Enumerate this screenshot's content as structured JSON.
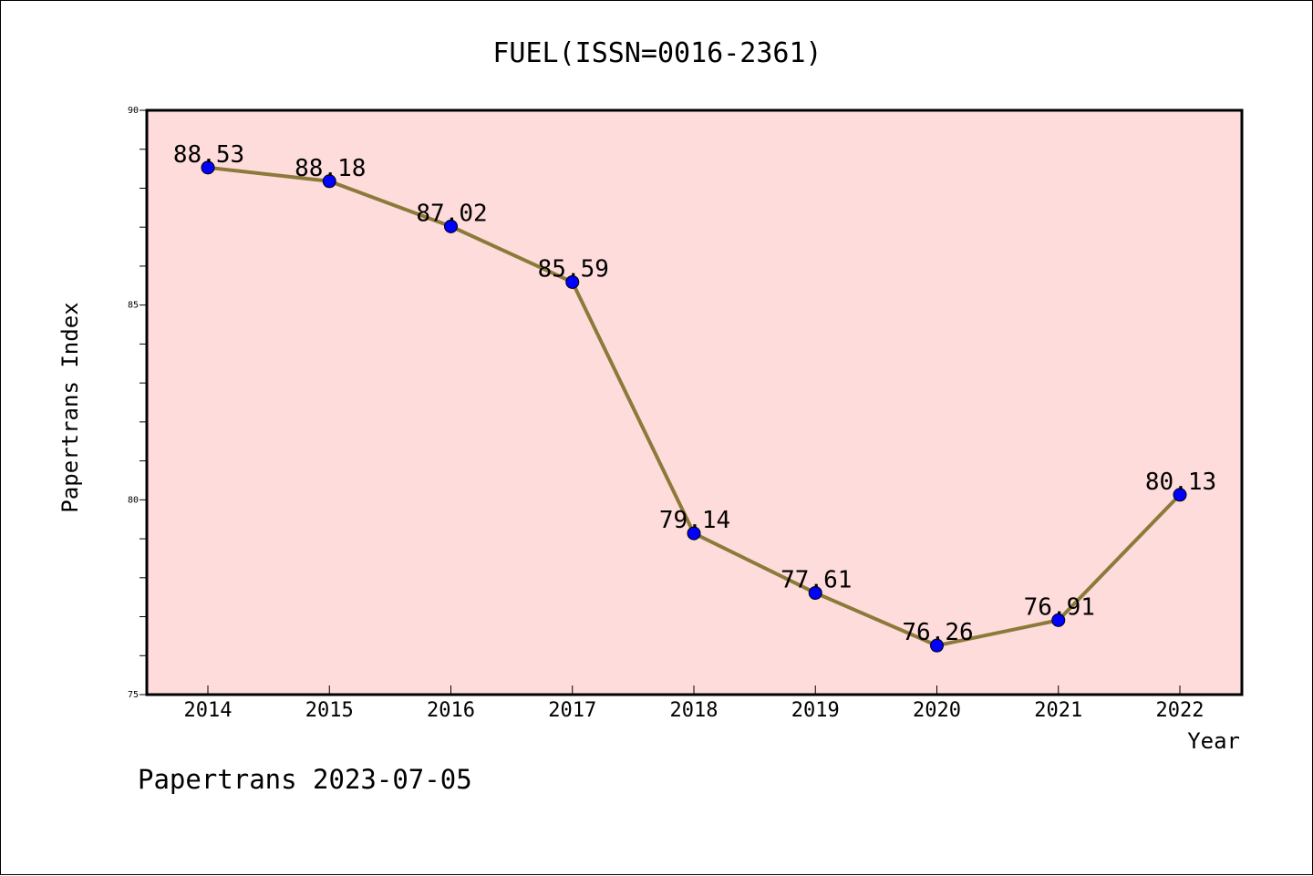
{
  "chart_data": {
    "type": "line",
    "title": "FUEL(ISSN=0016-2361)",
    "xlabel": "Year",
    "ylabel": "Papertrans Index",
    "categories": [
      "2014",
      "2015",
      "2016",
      "2017",
      "2018",
      "2019",
      "2020",
      "2021",
      "2022"
    ],
    "series": [
      {
        "values": [
          88.53,
          88.18,
          87.02,
          85.59,
          79.14,
          77.61,
          76.26,
          76.91,
          80.13
        ],
        "value_labels": [
          "88.53",
          "88.18",
          "87.02",
          "85.59",
          "79.14",
          "77.61",
          "76.26",
          "76.91",
          "80.13"
        ],
        "line_color": "#8b7a3a",
        "marker_color": "#0000ff"
      }
    ],
    "ylim": [
      75,
      90
    ],
    "y_ticks": [
      75,
      80,
      85,
      90
    ],
    "y_tick_labels": [
      "75",
      "80",
      "85",
      "90"
    ],
    "y_minor_step": 1,
    "grid": false,
    "plot_background": "#ffdcdc"
  },
  "footer": {
    "text": "Papertrans 2023-07-05"
  }
}
